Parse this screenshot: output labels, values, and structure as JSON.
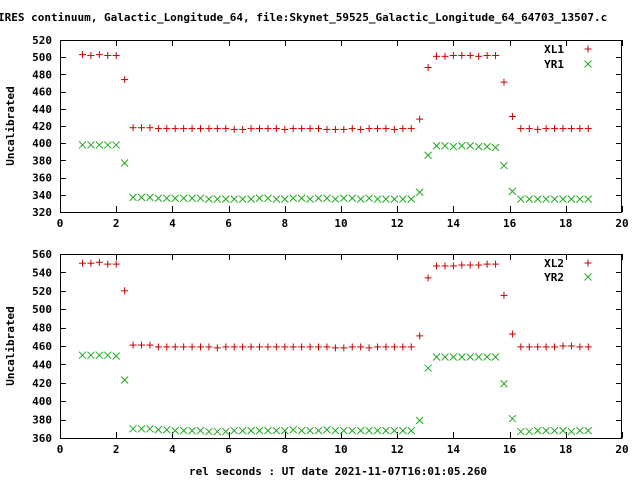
{
  "title": "IRES continuum, Galactic_Longitude_64, file:Skynet_59525_Galactic_Longitude_64_64703_13507.c",
  "xlabel": "rel seconds : UT date 2021-11-07T16:01:05.260",
  "colors": {
    "series1": "#cc0000",
    "series2": "#22aa22",
    "axis": "#000000"
  },
  "chart_data": [
    {
      "type": "scatter",
      "ylabel": "Uncalibrated",
      "xlim": [
        0,
        20
      ],
      "ylim": [
        320,
        520
      ],
      "xticks": [
        "0",
        "2",
        "4",
        "6",
        "8",
        "10",
        "12",
        "14",
        "16",
        "18",
        "20"
      ],
      "yticks": [
        "320",
        "340",
        "360",
        "380",
        "400",
        "420",
        "440",
        "460",
        "480",
        "500",
        "520"
      ],
      "legend_position": "top-right",
      "x": [
        0.8,
        1.1,
        1.4,
        1.7,
        2.0,
        2.3,
        2.6,
        2.9,
        3.2,
        3.5,
        3.8,
        4.1,
        4.4,
        4.7,
        5.0,
        5.3,
        5.6,
        5.9,
        6.2,
        6.5,
        6.8,
        7.1,
        7.4,
        7.7,
        8.0,
        8.3,
        8.6,
        8.9,
        9.2,
        9.5,
        9.8,
        10.1,
        10.4,
        10.7,
        11.0,
        11.3,
        11.6,
        11.9,
        12.2,
        12.5,
        12.8,
        13.1,
        13.4,
        13.7,
        14.0,
        14.3,
        14.6,
        14.9,
        15.2,
        15.5,
        15.8,
        16.1,
        16.4,
        16.7,
        17.0,
        17.3,
        17.6,
        17.9,
        18.2,
        18.5,
        18.8
      ],
      "series": [
        {
          "name": "XL1",
          "marker": "plus",
          "values": [
            503,
            502,
            503,
            502,
            502,
            474,
            418,
            418,
            418,
            417,
            417,
            417,
            417,
            417,
            417,
            417,
            417,
            417,
            416,
            416,
            417,
            417,
            417,
            417,
            416,
            417,
            417,
            417,
            417,
            416,
            416,
            416,
            417,
            416,
            417,
            417,
            417,
            416,
            417,
            417,
            428,
            488,
            501,
            501,
            502,
            502,
            502,
            501,
            502,
            502,
            471,
            431,
            417,
            417,
            416,
            417,
            417,
            417,
            417,
            417,
            417
          ]
        },
        {
          "name": "YR1",
          "marker": "cross",
          "values": [
            398,
            398,
            398,
            398,
            398,
            377,
            337,
            337,
            337,
            336,
            336,
            336,
            336,
            336,
            336,
            335,
            335,
            335,
            335,
            335,
            335,
            336,
            336,
            335,
            335,
            336,
            336,
            335,
            336,
            336,
            335,
            336,
            336,
            335,
            336,
            335,
            335,
            335,
            335,
            335,
            343,
            386,
            397,
            397,
            396,
            397,
            397,
            396,
            396,
            395,
            374,
            344,
            335,
            335,
            335,
            335,
            335,
            335,
            335,
            335,
            335
          ]
        }
      ]
    },
    {
      "type": "scatter",
      "ylabel": "Uncalibrated",
      "xlim": [
        0,
        20
      ],
      "ylim": [
        360,
        560
      ],
      "xticks": [
        "0",
        "2",
        "4",
        "6",
        "8",
        "10",
        "12",
        "14",
        "16",
        "18",
        "20"
      ],
      "yticks": [
        "360",
        "380",
        "400",
        "420",
        "440",
        "460",
        "480",
        "500",
        "520",
        "540",
        "560"
      ],
      "legend_position": "top-right",
      "x": [
        0.8,
        1.1,
        1.4,
        1.7,
        2.0,
        2.3,
        2.6,
        2.9,
        3.2,
        3.5,
        3.8,
        4.1,
        4.4,
        4.7,
        5.0,
        5.3,
        5.6,
        5.9,
        6.2,
        6.5,
        6.8,
        7.1,
        7.4,
        7.7,
        8.0,
        8.3,
        8.6,
        8.9,
        9.2,
        9.5,
        9.8,
        10.1,
        10.4,
        10.7,
        11.0,
        11.3,
        11.6,
        11.9,
        12.2,
        12.5,
        12.8,
        13.1,
        13.4,
        13.7,
        14.0,
        14.3,
        14.6,
        14.9,
        15.2,
        15.5,
        15.8,
        16.1,
        16.4,
        16.7,
        17.0,
        17.3,
        17.6,
        17.9,
        18.2,
        18.5,
        18.8
      ],
      "series": [
        {
          "name": "XL2",
          "marker": "plus",
          "values": [
            550,
            550,
            551,
            549,
            549,
            520,
            461,
            461,
            461,
            459,
            459,
            459,
            459,
            459,
            459,
            459,
            458,
            459,
            459,
            459,
            459,
            459,
            459,
            459,
            459,
            459,
            459,
            459,
            459,
            459,
            458,
            458,
            459,
            459,
            458,
            459,
            459,
            459,
            459,
            459,
            471,
            534,
            547,
            547,
            547,
            548,
            548,
            548,
            549,
            549,
            515,
            473,
            459,
            459,
            459,
            459,
            459,
            460,
            460,
            459,
            459
          ]
        },
        {
          "name": "YR2",
          "marker": "cross",
          "values": [
            450,
            450,
            450,
            450,
            449,
            423,
            370,
            370,
            370,
            369,
            369,
            368,
            368,
            368,
            368,
            367,
            367,
            367,
            368,
            368,
            368,
            368,
            368,
            368,
            368,
            369,
            368,
            368,
            368,
            369,
            368,
            368,
            368,
            368,
            368,
            368,
            368,
            368,
            368,
            368,
            379,
            436,
            448,
            448,
            448,
            448,
            448,
            448,
            448,
            448,
            419,
            381,
            367,
            367,
            368,
            368,
            368,
            368,
            367,
            368,
            368
          ]
        }
      ]
    }
  ]
}
